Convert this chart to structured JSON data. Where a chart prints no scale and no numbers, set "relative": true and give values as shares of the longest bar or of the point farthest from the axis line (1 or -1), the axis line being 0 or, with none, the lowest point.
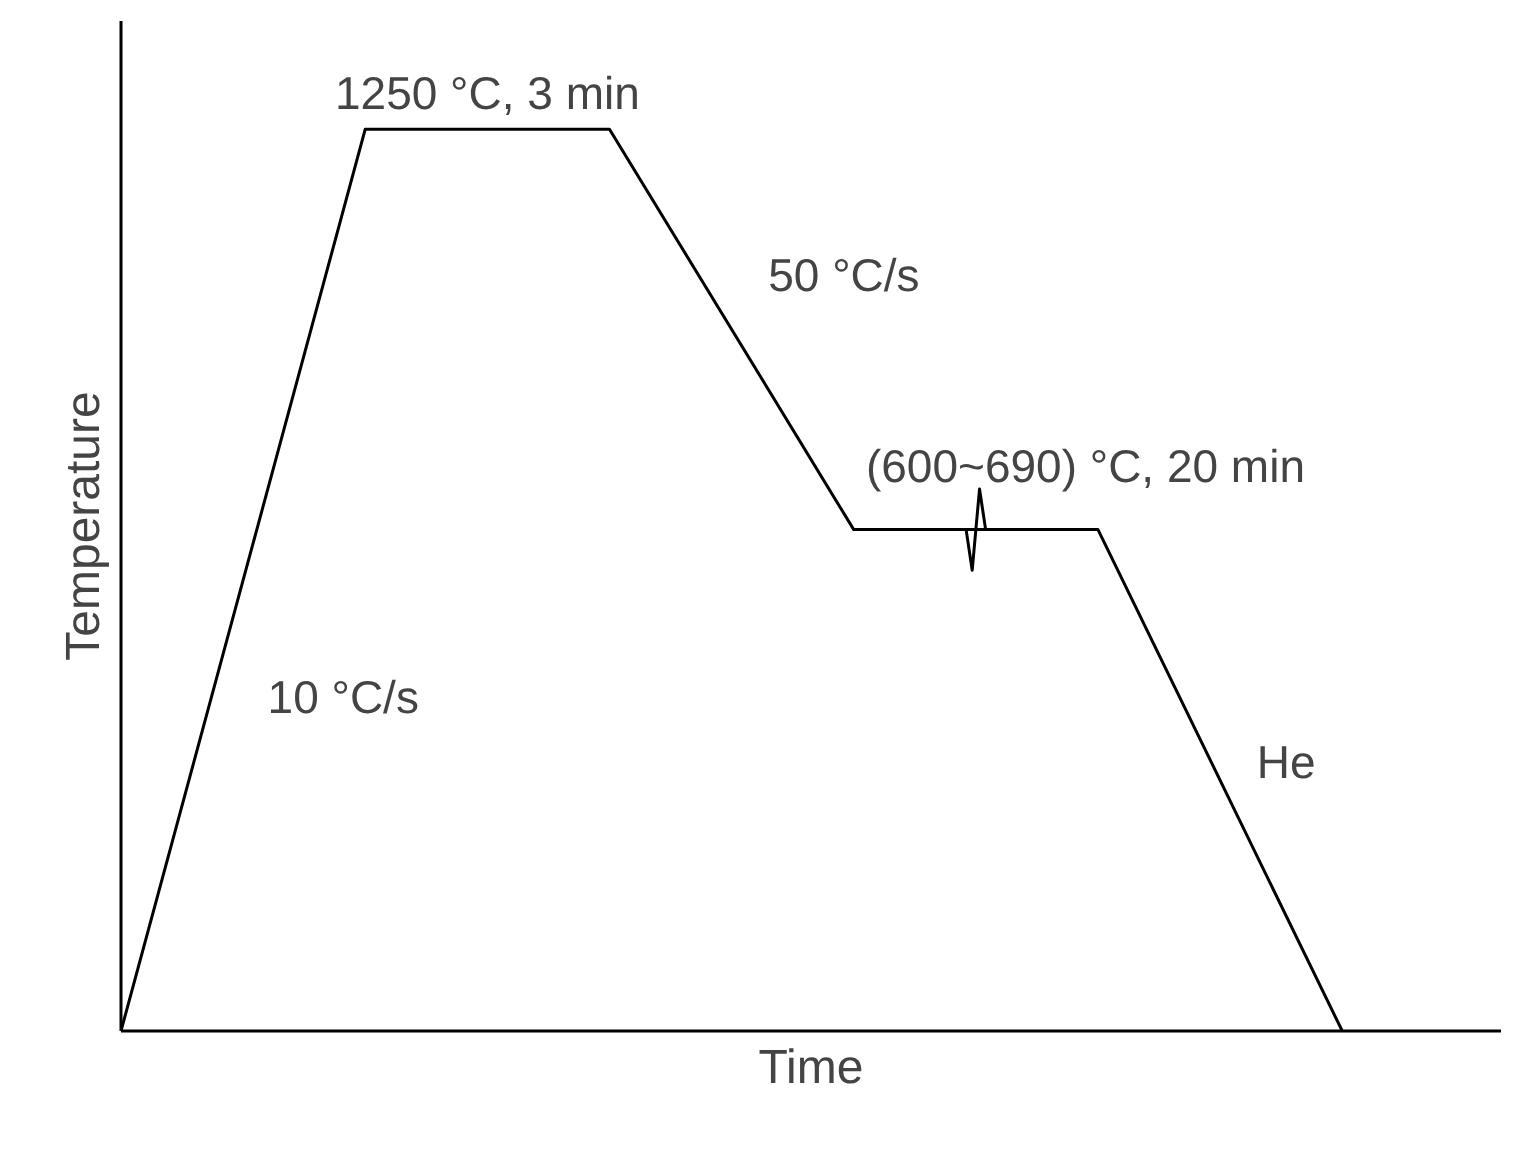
{
  "chart_data": {
    "type": "line",
    "relative": true,
    "xlabel": "Time",
    "ylabel": "Temperature",
    "color": "#000000",
    "marker": "none",
    "line_style": "solid",
    "categories": [
      null,
      null,
      null,
      null,
      null,
      null
    ],
    "values": [
      0,
      1.0,
      1.0,
      0.556,
      0.556,
      0
    ],
    "annotations": [
      "1250 °C, 3 min",
      "50 °C/s",
      "(600~690) °C, 20 min",
      "10 °C/s",
      "He"
    ]
  }
}
